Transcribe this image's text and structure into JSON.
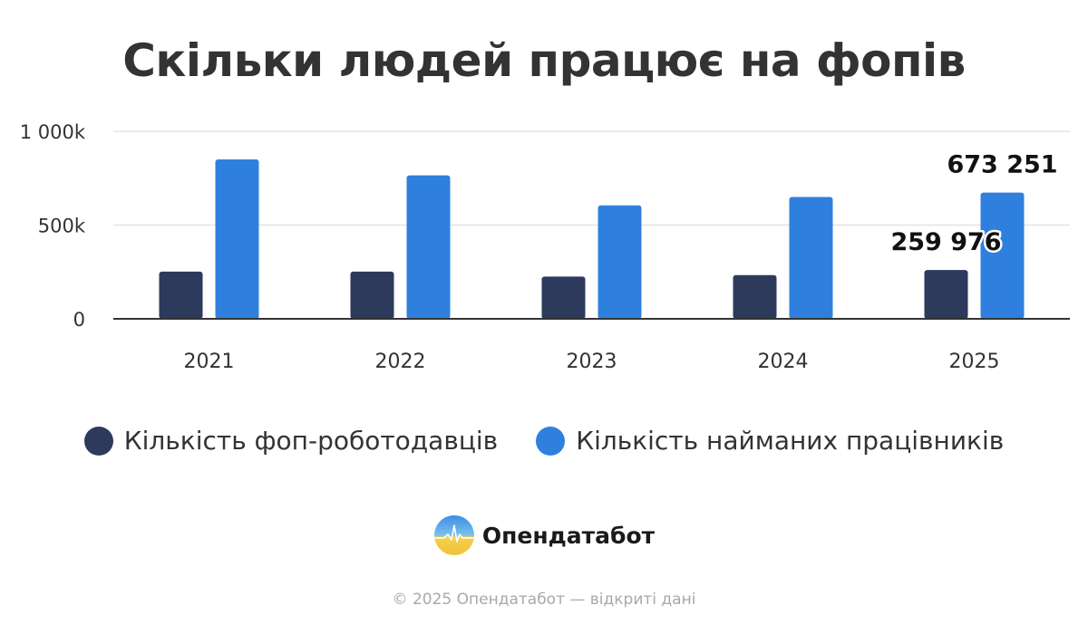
{
  "chart_data": {
    "type": "bar",
    "title": "Скільки людей працює на фопів",
    "categories": [
      "2021",
      "2022",
      "2023",
      "2024",
      "2025"
    ],
    "series": [
      {
        "name": "Кількість фоп-роботодавців",
        "color": "#2d3a5c",
        "values": [
          252000,
          252000,
          225000,
          233000,
          259976
        ]
      },
      {
        "name": "Кількість найманих працівників",
        "color": "#2f80de",
        "values": [
          850000,
          765000,
          605000,
          650000,
          673251
        ]
      }
    ],
    "data_labels": [
      {
        "series": 0,
        "category": "2025",
        "text": "259 976"
      },
      {
        "series": 1,
        "category": "2025",
        "text": "673 251"
      }
    ],
    "yticks": [
      {
        "value": 0,
        "label": "0"
      },
      {
        "value": 500000,
        "label": "500k"
      },
      {
        "value": 1000000,
        "label": "1 000k"
      }
    ],
    "ylim": [
      0,
      1000000
    ],
    "grid": true,
    "legend_position": "bottom"
  },
  "brand": {
    "name": "Опендатабот"
  },
  "footer": "© 2025 Опендатабот — відкриті дані"
}
